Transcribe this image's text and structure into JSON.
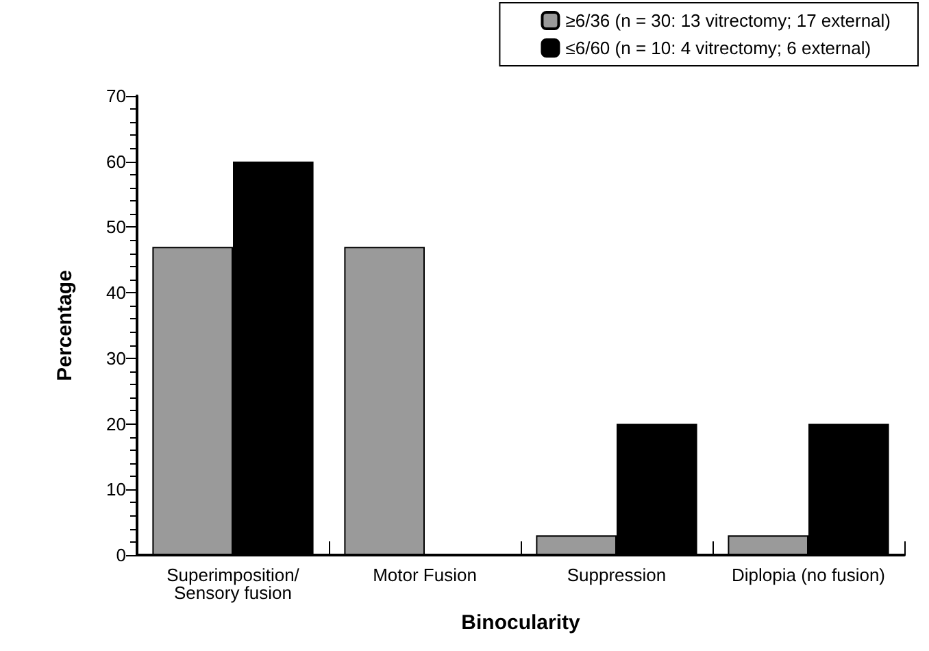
{
  "chart_data": {
    "type": "bar",
    "xlabel": "Binocularity",
    "ylabel": "Percentage",
    "categories": [
      "Superimposition/\nSensory fusion",
      "Motor Fusion",
      "Suppression",
      "Diplopia (no fusion)"
    ],
    "series": [
      {
        "name": "≥6/36 (n = 30: 13 vitrectomy; 17 external)",
        "color": "#9a9a9a",
        "values": [
          47,
          47,
          3,
          3
        ]
      },
      {
        "name": "≤6/60 (n = 10: 4 vitrectomy; 6 external)",
        "color": "#000000",
        "values": [
          60,
          0,
          20,
          20
        ]
      }
    ],
    "ylim": [
      0,
      70
    ],
    "yticks": [
      0,
      10,
      20,
      30,
      40,
      50,
      60,
      70
    ],
    "grid": false,
    "legend": "top right"
  }
}
